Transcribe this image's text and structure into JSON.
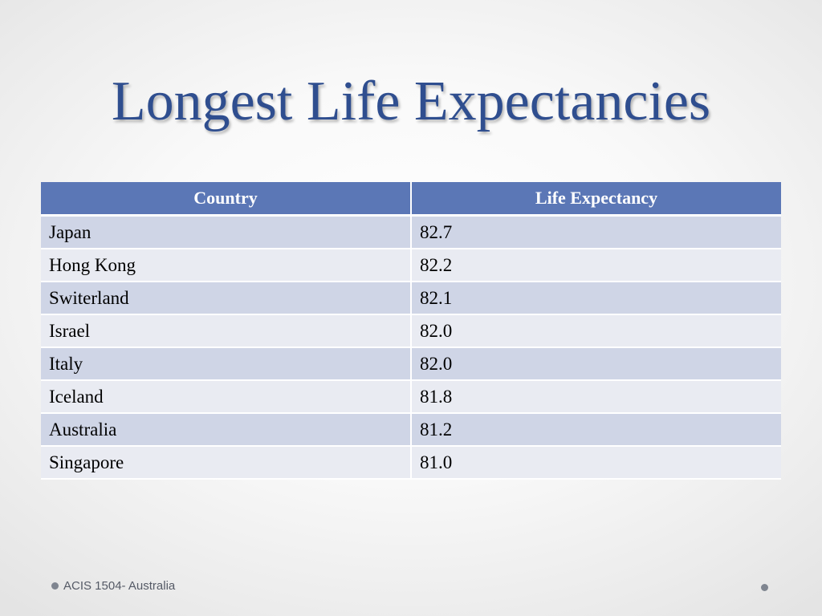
{
  "slide": {
    "title": "Longest Life Expectancies"
  },
  "table": {
    "headers": [
      "Country",
      "Life Expectancy"
    ],
    "rows": [
      {
        "country": "Japan",
        "value": "82.7"
      },
      {
        "country": "Hong Kong",
        "value": "82.2"
      },
      {
        "country": "Switerland",
        "value": "82.1"
      },
      {
        "country": "Israel",
        "value": "82.0"
      },
      {
        "country": "Italy",
        "value": "82.0"
      },
      {
        "country": "Iceland",
        "value": "81.8"
      },
      {
        "country": "Australia",
        "value": "81.2"
      },
      {
        "country": "Singapore",
        "value": "81.0"
      }
    ]
  },
  "footer": {
    "text": "ACIS 1504- Australia"
  },
  "colors": {
    "title": "#2f4e8f",
    "header_bg": "#5b77b6",
    "row_odd": "#cfd5e6",
    "row_even": "#e9ebf2"
  }
}
